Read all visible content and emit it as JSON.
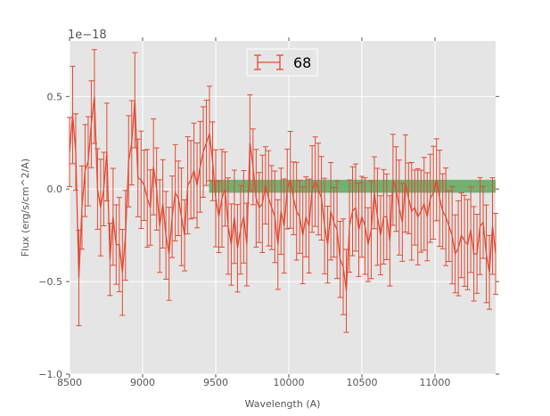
{
  "chart_data": {
    "type": "line",
    "title": "",
    "xlabel": "Wavelength (A)",
    "ylabel": "Flux (erg/s/cm^2/A)",
    "offset_text": "1e−18",
    "xlim": [
      8500,
      11415
    ],
    "ylim": [
      -1.0,
      0.8
    ],
    "xticks": [
      8500,
      9000,
      9500,
      10000,
      10500,
      11000
    ],
    "xtick_labels": [
      "8500",
      "9000",
      "9500",
      "10000",
      "10500",
      "11000"
    ],
    "yticks": [
      -1.0,
      -0.5,
      0.0,
      0.5
    ],
    "ytick_labels": [
      "−1.0",
      "−0.5",
      "0.0",
      "0.5"
    ],
    "grid": true,
    "legend": {
      "placement": "top-center",
      "entries": [
        "68"
      ]
    },
    "band": {
      "x": [
        9455,
        11415
      ],
      "y": [
        -0.02,
        0.05
      ],
      "color": "#4a9e4a"
    },
    "series": [
      {
        "name": "68",
        "color": "#e24a33",
        "x_start": 8500,
        "x_end": 11415,
        "yerr": 0.22,
        "values": [
          0.2,
          0.4,
          0.2,
          -0.48,
          -0.1,
          0.1,
          0.15,
          0.35,
          0.5,
          0.0,
          -0.1,
          0.0,
          0.2,
          -0.38,
          -0.15,
          -0.3,
          -0.3,
          -0.45,
          -0.25,
          0.15,
          0.25,
          0.48,
          0.06,
          0.05,
          0.02,
          -0.05,
          -0.1,
          0.12,
          0.0,
          -0.2,
          -0.08,
          -0.25,
          -0.35,
          -0.15,
          -0.02,
          -0.05,
          -0.15,
          -0.25,
          0.02,
          0.05,
          0.1,
          0.02,
          0.12,
          0.2,
          0.25,
          0.3,
          0.15,
          -0.05,
          -0.15,
          -0.05,
          0.0,
          -0.2,
          -0.3,
          -0.15,
          -0.32,
          -0.22,
          -0.15,
          -0.3,
          0.25,
          0.12,
          -0.05,
          -0.1,
          -0.08,
          0.02,
          -0.05,
          -0.1,
          -0.15,
          -0.3,
          -0.12,
          -0.2,
          0.0,
          0.05,
          -0.05,
          -0.12,
          -0.15,
          -0.25,
          -0.15,
          -0.2,
          0.0,
          0.04,
          0.0,
          -0.05,
          -0.2,
          -0.3,
          -0.12,
          -0.18,
          -0.22,
          -0.38,
          -0.42,
          -0.55,
          -0.2,
          -0.12,
          -0.1,
          -0.22,
          -0.15,
          -0.2,
          -0.3,
          -0.22,
          -0.02,
          -0.15,
          -0.25,
          -0.15,
          -0.15,
          -0.28,
          0.05,
          0.0,
          -0.1,
          -0.18,
          0.03,
          -0.05,
          -0.12,
          -0.1,
          -0.15,
          -0.12,
          -0.08,
          -0.15,
          -0.05,
          -0.02,
          0.05,
          -0.05,
          -0.12,
          -0.15,
          -0.2,
          -0.25,
          -0.35,
          -0.32,
          -0.25,
          -0.28,
          -0.3,
          -0.22,
          -0.35,
          -0.35,
          -0.2,
          -0.18,
          -0.35,
          -0.45,
          -0.2,
          -0.35
        ]
      }
    ]
  }
}
